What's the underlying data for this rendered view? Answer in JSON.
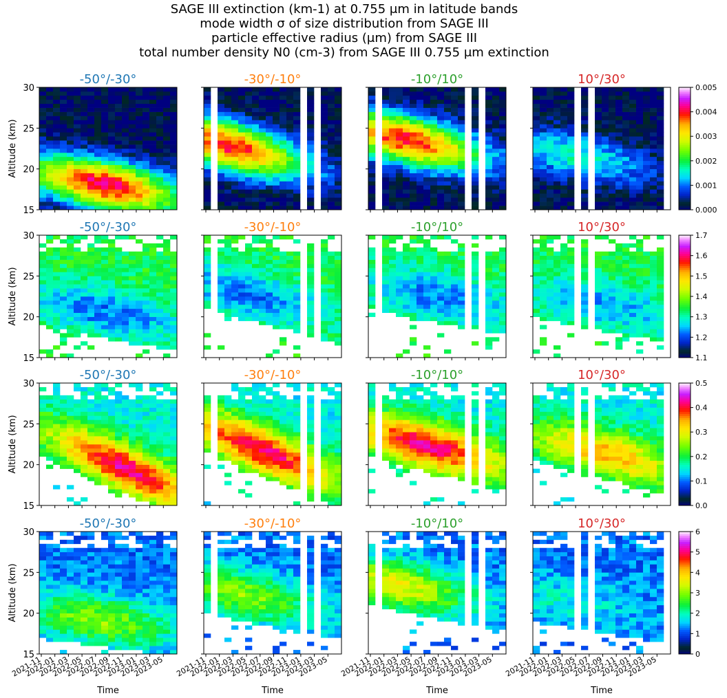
{
  "title_lines": [
    "SAGE III extinction (km-1) at 0.755 μm in latitude bands",
    "mode width σ of size distribution from SAGE III",
    "particle effective radius (μm) from SAGE III",
    "total number density N0 (cm-3) from SAGE III 0.755 μm extinction"
  ],
  "chart_data": {
    "type": "heatmap",
    "bands": [
      {
        "label": "-50°/-30°",
        "color": "#1f77b4"
      },
      {
        "label": "-30°/-10°",
        "color": "#ff7f0e"
      },
      {
        "label": "-10°/10°",
        "color": "#2ca02c"
      },
      {
        "label": "10°/30°",
        "color": "#d62728"
      }
    ],
    "ylabel": "Altitude (km)",
    "xlabel": "Time",
    "ylim": [
      15,
      30
    ],
    "yticks": [
      "15",
      "20",
      "25",
      "30"
    ],
    "xticks": [
      "2021-11",
      "2022-01",
      "2022-03",
      "2022-05",
      "2022-07",
      "2022-09",
      "2022-11",
      "2023-01",
      "2023-03",
      "2023-05"
    ],
    "time_range": [
      "2021-10",
      "2023-06"
    ],
    "rows": [
      {
        "variable": "extinction (km-1) at 0.755 μm",
        "cbar_ticks": [
          "0.000",
          "0.001",
          "0.002",
          "0.003",
          "0.004",
          "0.005"
        ],
        "vmin": 0.0,
        "vmax": 0.005,
        "missing_months": [
          [],
          [
            1,
            14,
            16
          ],
          [
            1,
            14,
            16
          ],
          [
            6,
            8,
            19
          ]
        ],
        "peak": [
          {
            "alt_start": 19.5,
            "alt_end": 16.5,
            "value": 0.0042,
            "t_peak": 9
          },
          {
            "alt_start": 23.5,
            "alt_end": 19.5,
            "value": 0.004,
            "t_peak": 3
          },
          {
            "alt_start": 24.5,
            "alt_end": 21.0,
            "value": 0.004,
            "t_peak": 5
          },
          {
            "alt_start": 22.5,
            "alt_end": 19.5,
            "value": 0.0016,
            "t_peak": 6
          }
        ]
      },
      {
        "variable": "mode width σ of size distribution",
        "cbar_ticks": [
          "1.1",
          "1.2",
          "1.3",
          "1.4",
          "1.5",
          "1.6",
          "1.7"
        ],
        "vmin": 1.1,
        "vmax": 1.7,
        "missing_months": [
          [],
          [
            1,
            14,
            16
          ],
          [
            1,
            14,
            16
          ],
          [
            6,
            8,
            19
          ]
        ],
        "peak": [
          {
            "alt_start": 22.0,
            "alt_end": 19.0,
            "value": 1.22,
            "t_peak": 9
          },
          {
            "alt_start": 24.0,
            "alt_end": 20.0,
            "value": 1.22,
            "t_peak": 6
          },
          {
            "alt_start": 24.0,
            "alt_end": 21.0,
            "value": 1.22,
            "t_peak": 10
          },
          {
            "alt_start": 23.0,
            "alt_end": 20.0,
            "value": 1.24,
            "t_peak": 10
          }
        ]
      },
      {
        "variable": "particle effective radius (μm)",
        "cbar_ticks": [
          "0.0",
          "0.1",
          "0.2",
          "0.3",
          "0.4",
          "0.5"
        ],
        "vmin": 0.0,
        "vmax": 0.5,
        "missing_months": [
          [],
          [
            1,
            14,
            16
          ],
          [
            1,
            14,
            16
          ],
          [
            6,
            8,
            19
          ]
        ],
        "peak": [
          {
            "alt_start": 24.0,
            "alt_end": 17.0,
            "value": 0.42,
            "t_peak": 12
          },
          {
            "alt_start": 24.5,
            "alt_end": 18.0,
            "value": 0.42,
            "t_peak": 8
          },
          {
            "alt_start": 24.0,
            "alt_end": 20.0,
            "value": 0.42,
            "t_peak": 8
          },
          {
            "alt_start": 23.5,
            "alt_end": 19.5,
            "value": 0.34,
            "t_peak": 10
          }
        ]
      },
      {
        "variable": "total number density N0 (cm-3)",
        "cbar_ticks": [
          "0",
          "1",
          "2",
          "3",
          "4",
          "5",
          "6"
        ],
        "vmin": 0,
        "vmax": 6,
        "missing_months": [
          [],
          [
            1,
            14,
            16
          ],
          [
            1,
            14,
            16
          ],
          [
            6,
            8,
            19
          ]
        ],
        "peak": [
          {
            "alt_start": 20.0,
            "alt_end": 18.0,
            "value": 3.0,
            "t_peak": 8
          },
          {
            "alt_start": 23.0,
            "alt_end": 20.0,
            "value": 3.0,
            "t_peak": 5
          },
          {
            "alt_start": 24.0,
            "alt_end": 21.0,
            "value": 3.6,
            "t_peak": 3
          },
          {
            "alt_start": 22.0,
            "alt_end": 19.5,
            "value": 1.8,
            "t_peak": 4
          }
        ]
      }
    ]
  }
}
